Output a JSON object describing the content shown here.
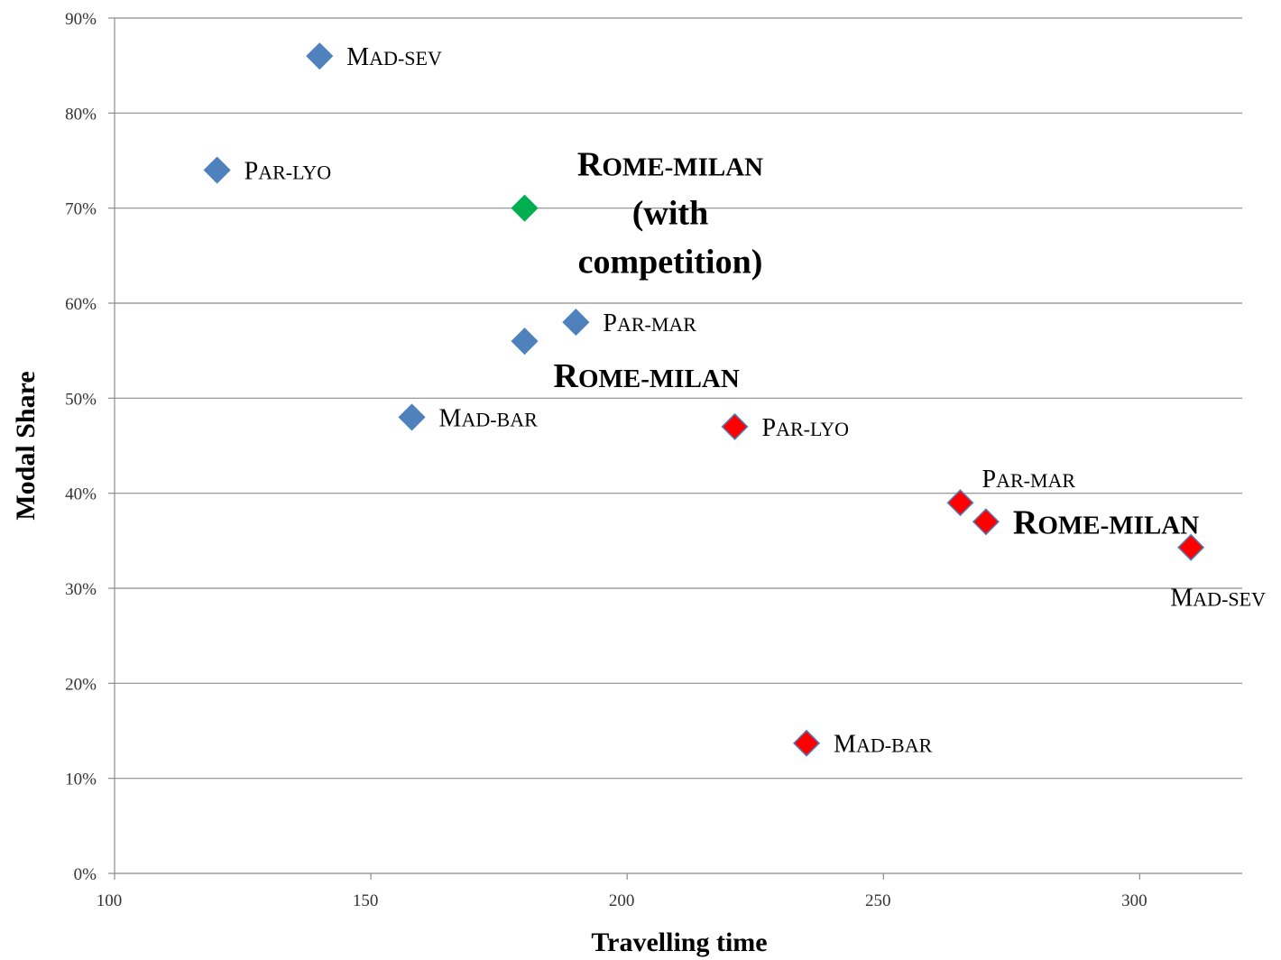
{
  "chart_data": {
    "type": "scatter",
    "title": "",
    "xlabel": "Travelling time",
    "ylabel": "Modal Share",
    "xlim": [
      100,
      320
    ],
    "ylim": [
      0,
      0.9
    ],
    "x_ticks": [
      {
        "value": 100,
        "label": "100"
      },
      {
        "value": 150,
        "label": "150"
      },
      {
        "value": 200,
        "label": "200"
      },
      {
        "value": 250,
        "label": "250"
      },
      {
        "value": 300,
        "label": "300"
      }
    ],
    "y_ticks": [
      {
        "value": 0.0,
        "label": "0%"
      },
      {
        "value": 0.1,
        "label": "10%"
      },
      {
        "value": 0.2,
        "label": "20%"
      },
      {
        "value": 0.3,
        "label": "30%"
      },
      {
        "value": 0.4,
        "label": "40%"
      },
      {
        "value": 0.5,
        "label": "50%"
      },
      {
        "value": 0.6,
        "label": "60%"
      },
      {
        "value": 0.7,
        "label": "70%"
      },
      {
        "value": 0.8,
        "label": "80%"
      },
      {
        "value": 0.9,
        "label": "90%"
      }
    ],
    "grid": "horizontal",
    "legend": "none",
    "series": [
      {
        "color": "#4f81bd",
        "points": [
          {
            "x": 140,
            "y": 0.86,
            "label": "MAD-SEV",
            "label_pos": "right",
            "style": "normal"
          },
          {
            "x": 120,
            "y": 0.74,
            "label": "PAR-LYO",
            "label_pos": "right",
            "style": "normal"
          },
          {
            "x": 190,
            "y": 0.58,
            "label": "PAR-MAR",
            "label_pos": "right",
            "style": "normal"
          },
          {
            "x": 180,
            "y": 0.56,
            "label": "ROME-MILAN",
            "label_pos": "below-right",
            "style": "bold"
          },
          {
            "x": 158,
            "y": 0.48,
            "label": "MAD-BAR",
            "label_pos": "right",
            "style": "normal"
          }
        ]
      },
      {
        "color": "#00b050",
        "points": [
          {
            "x": 180,
            "y": 0.7,
            "label": "ROME-MILAN (with competition)",
            "label_pos": "right",
            "style": "bold"
          }
        ]
      },
      {
        "color": "#ff0000",
        "points": [
          {
            "x": 221,
            "y": 0.47,
            "label": "PAR-LYO",
            "label_pos": "right",
            "style": "normal"
          },
          {
            "x": 265,
            "y": 0.39,
            "label": "PAR-MAR",
            "label_pos": "above-right",
            "style": "normal"
          },
          {
            "x": 270,
            "y": 0.37,
            "label": "ROME-MILAN",
            "label_pos": "right",
            "style": "bold"
          },
          {
            "x": 310,
            "y": 0.343,
            "label": "MAD-SEV",
            "label_pos": "below",
            "style": "normal"
          },
          {
            "x": 235,
            "y": 0.137,
            "label": "MAD-BAR",
            "label_pos": "right",
            "style": "normal"
          }
        ]
      }
    ]
  }
}
